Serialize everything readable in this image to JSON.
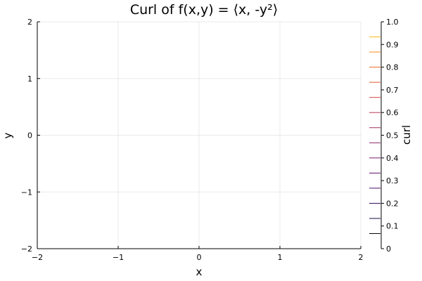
{
  "chart_data": {
    "type": "heatmap",
    "title": "Curl of f(x,y) = ⟨x, -y²⟩",
    "xlabel": "x",
    "ylabel": "y",
    "xlim": [
      -2,
      2
    ],
    "ylim": [
      -2,
      2
    ],
    "x_ticks": [
      -2,
      -1,
      0,
      1,
      2
    ],
    "y_ticks": [
      -2,
      -1,
      0,
      1,
      2
    ],
    "x_tick_labels": [
      "−2",
      "−1",
      "0",
      "1",
      "2"
    ],
    "y_tick_labels": [
      "−2",
      "−1",
      "0",
      "1",
      "2"
    ],
    "grid": true,
    "values_visible": "none (curl is 0 everywhere; no filled region drawn)",
    "colorbar": {
      "label": "curl",
      "range": [
        0,
        1
      ],
      "ticks": [
        0,
        0.1,
        0.2,
        0.3,
        0.4,
        0.5,
        0.6,
        0.7,
        0.8,
        0.9,
        1.0
      ],
      "tick_labels": [
        "0",
        "0.1",
        "0.2",
        "0.3",
        "0.4",
        "0.5",
        "0.6",
        "0.7",
        "0.8",
        "0.9",
        "1.0"
      ],
      "levels": [
        0.0667,
        0.1333,
        0.2,
        0.2667,
        0.3333,
        0.4,
        0.4667,
        0.5333,
        0.6,
        0.6667,
        0.7333,
        0.8,
        0.8667,
        0.9333
      ],
      "level_colors": [
        "#000004",
        "#1b0c41",
        "#320a5e",
        "#4a0c6b",
        "#610d6e",
        "#781c6d",
        "#8e2267",
        "#a52c60",
        "#bc3754",
        "#d24644",
        "#e25734",
        "#ef6e22",
        "#f88a0f",
        "#fbb61a"
      ]
    }
  }
}
